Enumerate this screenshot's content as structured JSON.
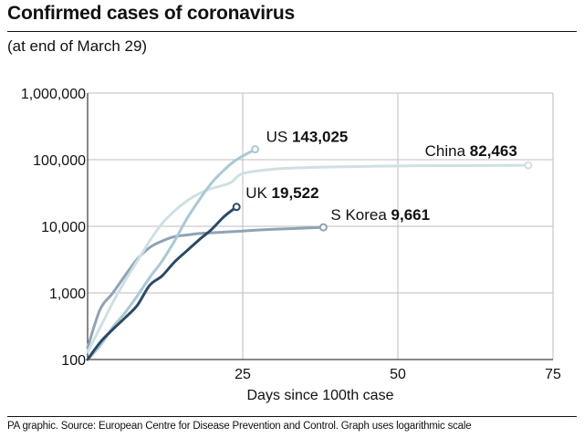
{
  "header": {
    "title": "Confirmed cases of coronavirus",
    "subtitle": "(at end of March 29)"
  },
  "footer": {
    "source": "PA graphic. Source: European Centre for Disease Prevention and Control. Graph uses logarithmic scale"
  },
  "chart_data": {
    "type": "line",
    "title": "Confirmed cases of coronavirus",
    "subtitle": "(at end of March 29)",
    "xlabel": "Days since 100th case",
    "ylabel": "",
    "xlim": [
      0,
      75
    ],
    "ylim": [
      100,
      1000000
    ],
    "y_scale": "log",
    "x_ticks": [
      25,
      50,
      75
    ],
    "x_tick_labels": [
      "25",
      "50",
      "75"
    ],
    "y_ticks": [
      100,
      1000,
      10000,
      100000,
      1000000
    ],
    "y_tick_labels": [
      "100",
      "1,000",
      "10,000",
      "100,000",
      "1,000,000"
    ],
    "grid": true,
    "legend": "none",
    "series": [
      {
        "name": "S Korea",
        "end_label": "9,661",
        "color": "#8fa3b5",
        "x": [
          0,
          2,
          4,
          6,
          8,
          10,
          12,
          14,
          16,
          18,
          20,
          25,
          30,
          38
        ],
        "y": [
          150,
          560,
          980,
          1800,
          3200,
          4800,
          6000,
          7000,
          7400,
          7800,
          8000,
          8500,
          9000,
          9661
        ]
      },
      {
        "name": "China",
        "end_label": "82,463",
        "color": "#cfe0e4",
        "x": [
          0,
          2,
          4,
          6,
          8,
          10,
          12,
          14,
          16,
          18,
          20,
          23,
          25,
          30,
          35,
          40,
          50,
          60,
          71
        ],
        "y": [
          130,
          300,
          700,
          1500,
          3000,
          6000,
          11000,
          17000,
          24000,
          31000,
          37000,
          45000,
          62000,
          72000,
          76000,
          78000,
          80500,
          81500,
          82463
        ]
      },
      {
        "name": "US",
        "end_label": "143,025",
        "color": "#a9c9d3",
        "x": [
          0,
          2,
          4,
          6,
          8,
          10,
          12,
          14,
          16,
          18,
          20,
          22,
          24,
          27
        ],
        "y": [
          100,
          160,
          300,
          500,
          900,
          1700,
          3000,
          6000,
          13000,
          25000,
          45000,
          70000,
          100000,
          143025
        ]
      },
      {
        "name": "UK",
        "end_label": "19,522",
        "color": "#2a4a66",
        "x": [
          0,
          2,
          4,
          6,
          8,
          10,
          12,
          14,
          16,
          18,
          20,
          22,
          24
        ],
        "y": [
          100,
          180,
          280,
          420,
          650,
          1300,
          1800,
          2900,
          4300,
          6300,
          9000,
          14000,
          19522
        ]
      }
    ]
  }
}
